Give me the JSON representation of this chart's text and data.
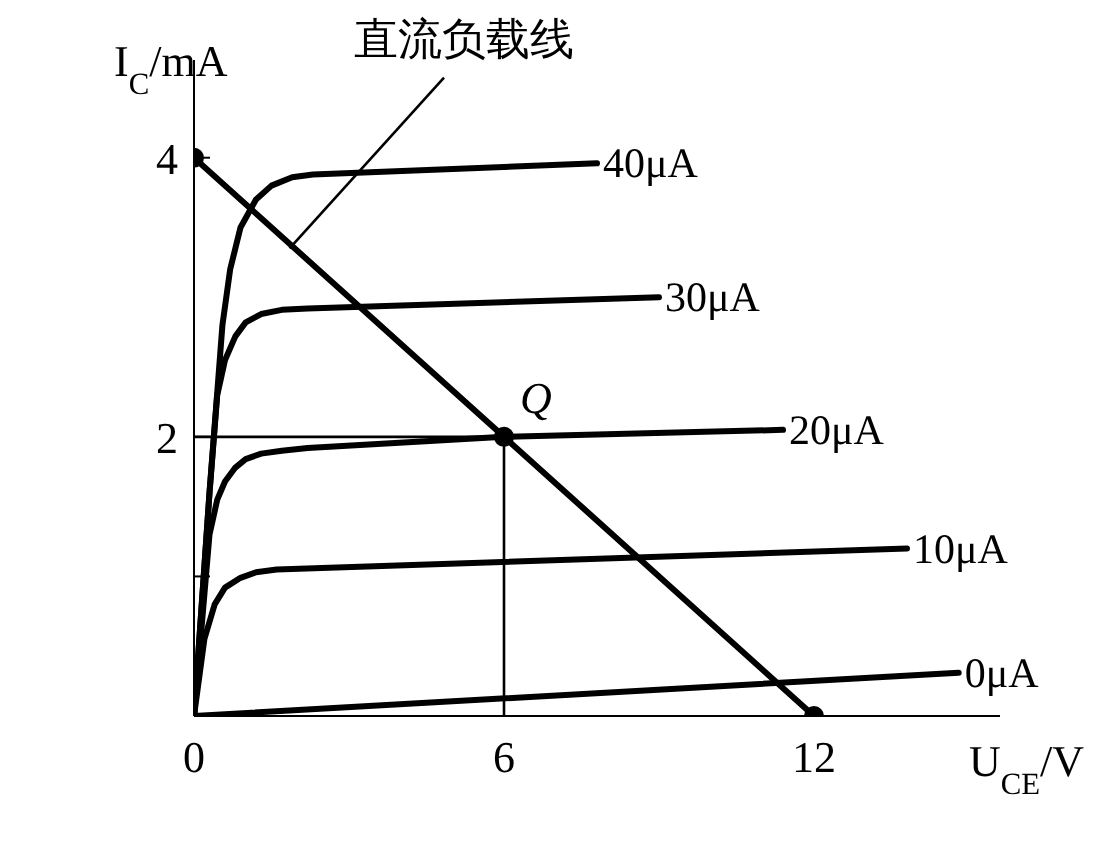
{
  "chart_data": {
    "type": "line",
    "xlabel": "U$_{CE}$/V",
    "ylabel": "I$_{C}$/mA",
    "xlim": [
      0,
      15.6
    ],
    "ylim": [
      0,
      4.7
    ],
    "xticks": [
      0,
      6,
      12
    ],
    "yticks": [
      {
        "value": 1,
        "label": null
      },
      2,
      4
    ],
    "line_style": "solid",
    "annotations": [
      {
        "text": "Q",
        "x": 6,
        "y": 2
      }
    ],
    "series": [
      {
        "name": "40μA",
        "color": "#000000",
        "x": [
          0,
          0.3,
          0.55,
          0.7,
          0.9,
          1.2,
          1.5,
          1.9,
          2.3,
          7.8
        ],
        "values": [
          0,
          1.6,
          2.8,
          3.2,
          3.5,
          3.7,
          3.8,
          3.86,
          3.88,
          3.96
        ]
      },
      {
        "name": "30μA",
        "color": "#000000",
        "x": [
          0,
          0.3,
          0.45,
          0.6,
          0.8,
          1.0,
          1.3,
          1.7,
          2.2,
          9.0
        ],
        "values": [
          0,
          1.6,
          2.3,
          2.55,
          2.72,
          2.82,
          2.88,
          2.91,
          2.92,
          3.0
        ]
      },
      {
        "name": "20μA",
        "color": "#000000",
        "x": [
          0,
          0.3,
          0.45,
          0.6,
          0.8,
          1.0,
          1.3,
          1.7,
          2.2,
          6,
          11.4
        ],
        "values": [
          0,
          1.3,
          1.55,
          1.68,
          1.78,
          1.84,
          1.88,
          1.9,
          1.92,
          2.0,
          2.05
        ]
      },
      {
        "name": "10μA",
        "color": "#000000",
        "x": [
          0,
          0.2,
          0.4,
          0.6,
          0.9,
          1.2,
          1.6,
          13.8
        ],
        "values": [
          0,
          0.55,
          0.8,
          0.92,
          0.99,
          1.03,
          1.05,
          1.2
        ]
      },
      {
        "name": "0μA",
        "color": "#000000",
        "x": [
          0,
          14.8
        ],
        "values": [
          0,
          0.31
        ]
      },
      {
        "color": "#000000",
        "x": [
          0,
          6,
          6
        ],
        "values": [
          2,
          2,
          0
        ]
      },
      {
        "name": "直流负载线",
        "color": "#000000",
        "marker": "circle",
        "x": [
          0,
          6,
          12
        ],
        "values": [
          4,
          2,
          0
        ]
      }
    ]
  }
}
